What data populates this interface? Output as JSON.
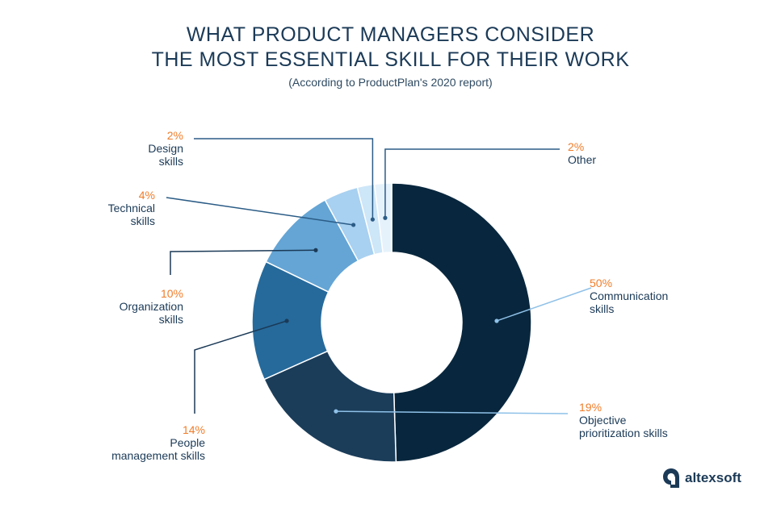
{
  "header": {
    "title_line1": "WHAT PRODUCT MANAGERS CONSIDER",
    "title_line2": "THE MOST ESSENTIAL SKILL FOR THEIR WORK",
    "subtitle": "(According to ProductPlan's 2020 report)"
  },
  "brand": {
    "name": "altexsoft"
  },
  "chart_data": {
    "type": "pie",
    "style": "donut",
    "title": "WHAT PRODUCT MANAGERS CONSIDER THE MOST ESSENTIAL SKILL FOR THEIR WORK",
    "subtitle": "(According to ProductPlan's 2020 report)",
    "unit": "%",
    "slices": [
      {
        "pct": "50%",
        "line1": "Communication",
        "line2": "skills",
        "value": 50,
        "color": "#08273e"
      },
      {
        "pct": "19%",
        "line1": "Objective",
        "line2": "prioritization skills",
        "value": 19,
        "color": "#1b3d5a"
      },
      {
        "pct": "14%",
        "line1": "People",
        "line2": "management skills",
        "value": 14,
        "color": "#266a9b"
      },
      {
        "pct": "10%",
        "line1": "Organization",
        "line2": "skills",
        "value": 10,
        "color": "#64a5d5"
      },
      {
        "pct": "4%",
        "line1": "Technical",
        "line2": "skills",
        "value": 4,
        "color": "#a8d0f0"
      },
      {
        "pct": "2%",
        "line1": "Design",
        "line2": "skills",
        "value": 2,
        "color": "#cde6f8"
      },
      {
        "pct": "2%",
        "line1": "Other",
        "line2": "",
        "value": 2,
        "color": "#e6f2fb"
      }
    ]
  }
}
